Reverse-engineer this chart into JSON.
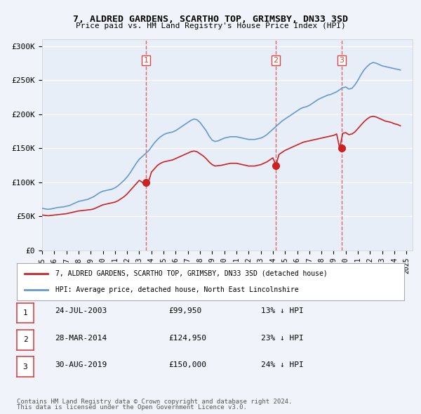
{
  "title": "7, ALDRED GARDENS, SCARTHO TOP, GRIMSBY, DN33 3SD",
  "subtitle": "Price paid vs. HM Land Registry's House Price Index (HPI)",
  "ylabel": "",
  "background_color": "#f0f4fa",
  "plot_bg_color": "#e8eef8",
  "grid_color": "#ffffff",
  "hpi_color": "#6699cc",
  "price_color": "#cc2222",
  "marker_color": "#cc2222",
  "vline_color": "#dd4444",
  "ylim": [
    0,
    310000
  ],
  "yticks": [
    0,
    50000,
    100000,
    150000,
    200000,
    250000,
    300000
  ],
  "ytick_labels": [
    "£0",
    "£50K",
    "£100K",
    "£150K",
    "£200K",
    "£250K",
    "£300K"
  ],
  "xmin": 1995.0,
  "xmax": 2025.5,
  "sales": [
    {
      "label": "1",
      "date": "24-JUL-2003",
      "year": 2003.55,
      "price": 99950,
      "pct": "13%",
      "dir": "↓"
    },
    {
      "label": "2",
      "date": "28-MAR-2014",
      "year": 2014.23,
      "price": 124950,
      "pct": "23%",
      "dir": "↓"
    },
    {
      "label": "3",
      "date": "30-AUG-2019",
      "year": 2019.66,
      "price": 150000,
      "pct": "24%",
      "dir": "↓"
    }
  ],
  "legend_line1": "7, ALDRED GARDENS, SCARTHO TOP, GRIMSBY, DN33 3SD (detached house)",
  "legend_line2": "HPI: Average price, detached house, North East Lincolnshire",
  "footnote1": "Contains HM Land Registry data © Crown copyright and database right 2024.",
  "footnote2": "This data is licensed under the Open Government Licence v3.0.",
  "hpi_data_x": [
    1995.0,
    1995.25,
    1995.5,
    1995.75,
    1996.0,
    1996.25,
    1996.5,
    1996.75,
    1997.0,
    1997.25,
    1997.5,
    1997.75,
    1998.0,
    1998.25,
    1998.5,
    1998.75,
    1999.0,
    1999.25,
    1999.5,
    1999.75,
    2000.0,
    2000.25,
    2000.5,
    2000.75,
    2001.0,
    2001.25,
    2001.5,
    2001.75,
    2002.0,
    2002.25,
    2002.5,
    2002.75,
    2003.0,
    2003.25,
    2003.5,
    2003.75,
    2004.0,
    2004.25,
    2004.5,
    2004.75,
    2005.0,
    2005.25,
    2005.5,
    2005.75,
    2006.0,
    2006.25,
    2006.5,
    2006.75,
    2007.0,
    2007.25,
    2007.5,
    2007.75,
    2008.0,
    2008.25,
    2008.5,
    2008.75,
    2009.0,
    2009.25,
    2009.5,
    2009.75,
    2010.0,
    2010.25,
    2010.5,
    2010.75,
    2011.0,
    2011.25,
    2011.5,
    2011.75,
    2012.0,
    2012.25,
    2012.5,
    2012.75,
    2013.0,
    2013.25,
    2013.5,
    2013.75,
    2014.0,
    2014.25,
    2014.5,
    2014.75,
    2015.0,
    2015.25,
    2015.5,
    2015.75,
    2016.0,
    2016.25,
    2016.5,
    2016.75,
    2017.0,
    2017.25,
    2017.5,
    2017.75,
    2018.0,
    2018.25,
    2018.5,
    2018.75,
    2019.0,
    2019.25,
    2019.5,
    2019.75,
    2020.0,
    2020.25,
    2020.5,
    2020.75,
    2021.0,
    2021.25,
    2021.5,
    2021.75,
    2022.0,
    2022.25,
    2022.5,
    2022.75,
    2023.0,
    2023.25,
    2023.5,
    2023.75,
    2024.0,
    2024.25,
    2024.5
  ],
  "hpi_data_y": [
    62000,
    61000,
    60500,
    61000,
    62000,
    63000,
    63500,
    64000,
    65000,
    66000,
    68000,
    70000,
    72000,
    73000,
    74000,
    75000,
    77000,
    79000,
    82000,
    85000,
    87000,
    88000,
    89000,
    90000,
    92000,
    95000,
    99000,
    103000,
    108000,
    114000,
    121000,
    128000,
    134000,
    138000,
    142000,
    146000,
    152000,
    158000,
    163000,
    167000,
    170000,
    172000,
    173000,
    174000,
    176000,
    179000,
    182000,
    185000,
    188000,
    191000,
    193000,
    192000,
    188000,
    182000,
    176000,
    168000,
    162000,
    160000,
    161000,
    163000,
    165000,
    166000,
    167000,
    167000,
    167000,
    166000,
    165000,
    164000,
    163000,
    163000,
    163000,
    164000,
    165000,
    167000,
    170000,
    174000,
    178000,
    182000,
    186000,
    190000,
    193000,
    196000,
    199000,
    202000,
    205000,
    208000,
    210000,
    211000,
    213000,
    216000,
    219000,
    222000,
    224000,
    226000,
    228000,
    229000,
    231000,
    233000,
    236000,
    239000,
    240000,
    237000,
    238000,
    243000,
    250000,
    258000,
    265000,
    270000,
    274000,
    276000,
    275000,
    273000,
    271000,
    270000,
    269000,
    268000,
    267000,
    266000,
    265000
  ],
  "price_data_x": [
    1995.0,
    1995.25,
    1995.5,
    1995.75,
    1996.0,
    1996.25,
    1996.5,
    1996.75,
    1997.0,
    1997.25,
    1997.5,
    1997.75,
    1998.0,
    1998.25,
    1998.5,
    1998.75,
    1999.0,
    1999.25,
    1999.5,
    1999.75,
    2000.0,
    2000.25,
    2000.5,
    2000.75,
    2001.0,
    2001.25,
    2001.5,
    2001.75,
    2002.0,
    2002.25,
    2002.5,
    2002.75,
    2003.0,
    2003.25,
    2003.5,
    2003.75,
    2004.0,
    2004.25,
    2004.5,
    2004.75,
    2005.0,
    2005.25,
    2005.5,
    2005.75,
    2006.0,
    2006.25,
    2006.5,
    2006.75,
    2007.0,
    2007.25,
    2007.5,
    2007.75,
    2008.0,
    2008.25,
    2008.5,
    2008.75,
    2009.0,
    2009.25,
    2009.5,
    2009.75,
    2010.0,
    2010.25,
    2010.5,
    2010.75,
    2011.0,
    2011.25,
    2011.5,
    2011.75,
    2012.0,
    2012.25,
    2012.5,
    2012.75,
    2013.0,
    2013.25,
    2013.5,
    2013.75,
    2014.0,
    2014.25,
    2014.5,
    2014.75,
    2015.0,
    2015.25,
    2015.5,
    2015.75,
    2016.0,
    2016.25,
    2016.5,
    2016.75,
    2017.0,
    2017.25,
    2017.5,
    2017.75,
    2018.0,
    2018.25,
    2018.5,
    2018.75,
    2019.0,
    2019.25,
    2019.5,
    2019.75,
    2020.0,
    2020.25,
    2020.5,
    2020.75,
    2021.0,
    2021.25,
    2021.5,
    2021.75,
    2022.0,
    2022.25,
    2022.5,
    2022.75,
    2023.0,
    2023.25,
    2023.5,
    2023.75,
    2024.0,
    2024.25,
    2024.5
  ],
  "price_data_y": [
    52000,
    51500,
    51000,
    51500,
    52000,
    52500,
    53000,
    53500,
    54000,
    55000,
    56000,
    57000,
    58000,
    58500,
    59000,
    59500,
    60000,
    61000,
    63000,
    65000,
    67000,
    68000,
    69000,
    70000,
    71000,
    73000,
    76000,
    79000,
    83000,
    88000,
    93000,
    98000,
    103000,
    100000,
    97000,
    99950,
    115000,
    120000,
    125000,
    128000,
    130000,
    131000,
    132000,
    133000,
    135000,
    137000,
    139000,
    141000,
    143000,
    145000,
    146000,
    145000,
    142000,
    139000,
    135000,
    130000,
    126000,
    124000,
    124500,
    125000,
    126000,
    127000,
    128000,
    128000,
    128000,
    127000,
    126000,
    125000,
    124000,
    124000,
    124000,
    125000,
    126000,
    128000,
    130000,
    133000,
    136000,
    124950,
    141000,
    144000,
    147000,
    149000,
    151000,
    153000,
    155000,
    157000,
    159000,
    160000,
    161000,
    162000,
    163000,
    164000,
    165000,
    166000,
    167000,
    168000,
    169000,
    171000,
    150000,
    172000,
    173000,
    170000,
    171000,
    174000,
    179000,
    184000,
    189000,
    193000,
    196000,
    197000,
    196000,
    194000,
    192000,
    190000,
    189000,
    188000,
    186000,
    185000,
    183000
  ]
}
